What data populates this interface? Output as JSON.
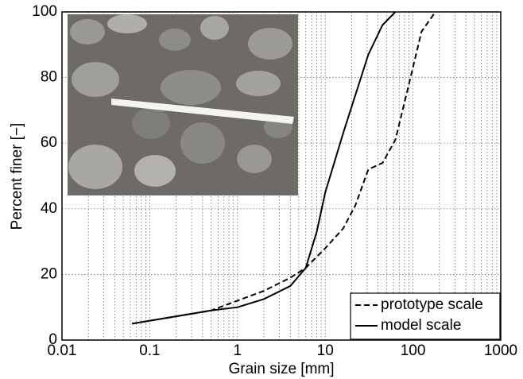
{
  "chart_data": {
    "type": "line",
    "x_label": "Grain size [mm]",
    "y_label": "Percent finer [−]",
    "log_x": true,
    "grid": true,
    "minor_grid": true,
    "legend": "lower right",
    "xlim": [
      0.01,
      1000
    ],
    "xticks": [
      0.01,
      0.1,
      1,
      10,
      100,
      1000
    ],
    "ylim": [
      0,
      100
    ],
    "yticks": [
      0,
      20,
      40,
      60,
      80,
      100
    ],
    "series": [
      {
        "name": "prototype scale",
        "color": "#000000",
        "dash": "dashed",
        "x": [
          0.063,
          0.5,
          1,
          2,
          4,
          6,
          10,
          16,
          22,
          31,
          45,
          63,
          90,
          125,
          180
        ],
        "values": [
          5,
          9,
          12,
          15,
          19,
          22,
          28,
          34,
          41,
          52,
          54,
          61,
          78,
          94,
          100
        ]
      },
      {
        "name": "model scale",
        "color": "#000000",
        "dash": "solid",
        "x": [
          0.063,
          0.5,
          1,
          2,
          4,
          6,
          8,
          10,
          16,
          31,
          45,
          63
        ],
        "values": [
          5,
          9,
          10,
          12.5,
          16.5,
          22,
          33,
          45,
          63,
          87,
          96,
          100
        ]
      }
    ]
  }
}
